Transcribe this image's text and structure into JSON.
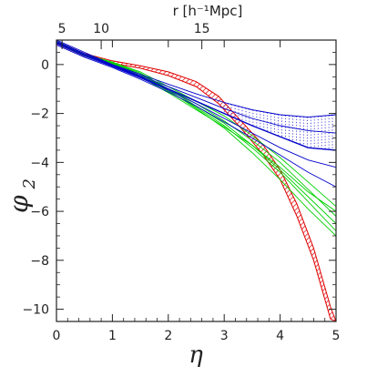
{
  "chart_data": {
    "type": "line",
    "title": "",
    "xlabel": "η",
    "ylabel_main": "φ",
    "ylabel_sub": "2",
    "top_axis_label": "r [h⁻¹Mpc]",
    "xlim": [
      0,
      5
    ],
    "ylim": [
      -10.5,
      1.0
    ],
    "grid": false,
    "x_ticks": [
      0,
      1,
      2,
      3,
      4,
      5
    ],
    "x_tick_labels": [
      "0",
      "1",
      "2",
      "3",
      "4",
      "5"
    ],
    "y_ticks": [
      0,
      -2,
      -4,
      -6,
      -8,
      -10
    ],
    "y_tick_labels": [
      "0",
      "−2",
      "−4",
      "−6",
      "−8",
      "−10"
    ],
    "top_ticks": [
      {
        "eta": 0.1,
        "label": "5"
      },
      {
        "eta": 0.8,
        "label": "10"
      },
      {
        "eta": 2.6,
        "label": "15"
      }
    ],
    "series": [
      {
        "color": "#e00000",
        "style": "band-hatched",
        "x": [
          0,
          0.5,
          1.0,
          1.5,
          2.0,
          2.5,
          2.9,
          3.3,
          3.7,
          4.0,
          4.3,
          4.6,
          4.9,
          5.0
        ],
        "upper": [
          0.95,
          0.45,
          0.15,
          -0.05,
          -0.3,
          -0.7,
          -1.3,
          -2.3,
          -3.3,
          -4.3,
          -5.7,
          -7.5,
          -9.9,
          -10.5
        ],
        "lower": [
          0.85,
          0.35,
          0.05,
          -0.15,
          -0.45,
          -0.9,
          -1.6,
          -2.6,
          -3.7,
          -4.7,
          -6.2,
          -8.0,
          -10.4,
          -10.5
        ]
      },
      {
        "color": "#00d000",
        "style": "lines",
        "x": [
          0,
          0.5,
          1.0,
          1.5,
          2.0,
          2.5,
          3.0,
          3.5,
          4.0,
          4.5,
          5.0
        ],
        "lines": [
          [
            0.95,
            0.4,
            0.1,
            -0.3,
            -0.9,
            -1.5,
            -2.1,
            -2.9,
            -3.8,
            -4.8,
            -5.8
          ],
          [
            0.9,
            0.38,
            0.05,
            -0.4,
            -1.0,
            -1.6,
            -2.3,
            -3.1,
            -4.0,
            -5.1,
            -6.2
          ],
          [
            0.95,
            0.42,
            0.1,
            -0.35,
            -1.0,
            -1.7,
            -2.4,
            -3.3,
            -4.3,
            -5.4,
            -6.5
          ],
          [
            0.9,
            0.38,
            0.02,
            -0.45,
            -1.1,
            -1.75,
            -2.5,
            -3.4,
            -4.4,
            -5.6,
            -6.8
          ],
          [
            0.95,
            0.4,
            0.08,
            -0.4,
            -1.05,
            -1.8,
            -2.6,
            -3.6,
            -4.7,
            -5.9,
            -7.0
          ],
          [
            0.9,
            0.36,
            0.0,
            -0.5,
            -1.15,
            -1.85,
            -2.55,
            -3.3,
            -4.2,
            -5.2,
            -6.0
          ]
        ]
      },
      {
        "color": "#0000cc",
        "style": "lines",
        "x": [
          0,
          0.5,
          1.0,
          1.5,
          2.0,
          2.5,
          3.0,
          3.5,
          4.0,
          4.5,
          5.0
        ],
        "lines": [
          [
            1.0,
            0.5,
            0.0,
            -0.4,
            -0.8,
            -1.2,
            -1.55,
            -1.85,
            -2.05,
            -2.15,
            -2.05
          ],
          [
            0.95,
            0.45,
            -0.02,
            -0.45,
            -0.9,
            -1.35,
            -1.8,
            -2.2,
            -2.5,
            -2.7,
            -2.8
          ],
          [
            0.9,
            0.4,
            -0.05,
            -0.5,
            -1.0,
            -1.5,
            -2.0,
            -2.5,
            -2.95,
            -3.4,
            -3.5
          ],
          [
            0.85,
            0.35,
            -0.08,
            -0.55,
            -1.05,
            -1.6,
            -2.2,
            -2.8,
            -3.4,
            -3.9,
            -4.2
          ],
          [
            0.8,
            0.3,
            -0.12,
            -0.6,
            -1.12,
            -1.7,
            -2.35,
            -3.0,
            -3.7,
            -4.4,
            -5.0
          ]
        ]
      },
      {
        "color": "#0000cc",
        "style": "dotted-band",
        "x": [
          3.0,
          3.25,
          3.5,
          3.75,
          4.0,
          4.25,
          4.5,
          4.75,
          5.0
        ],
        "upper": [
          -1.55,
          -1.7,
          -1.85,
          -1.95,
          -2.05,
          -2.1,
          -2.15,
          -2.1,
          -2.05
        ],
        "lower": [
          -2.0,
          -2.3,
          -2.5,
          -2.75,
          -2.95,
          -3.2,
          -3.4,
          -3.5,
          -3.5
        ]
      }
    ]
  }
}
